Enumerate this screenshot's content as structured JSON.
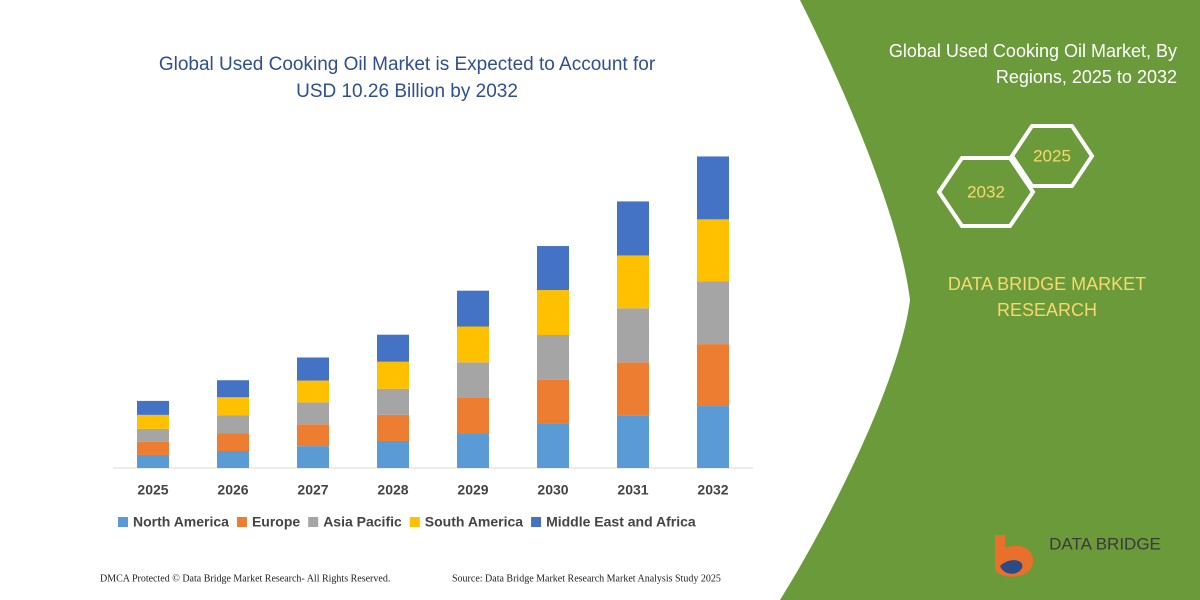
{
  "chart_data": {
    "type": "stacked-bar",
    "title": [
      "Global Used Cooking Oil Market is Expected to Account for",
      "USD 10.26 Billion by 2032"
    ],
    "categories": [
      "2025",
      "2026",
      "2027",
      "2028",
      "2029",
      "2030",
      "2031",
      "2032"
    ],
    "series": [
      {
        "name": "North America",
        "color": "#5b9bd5",
        "values": [
          0.43,
          0.56,
          0.72,
          0.89,
          1.15,
          1.45,
          1.74,
          2.04
        ]
      },
      {
        "name": "Europe",
        "color": "#ed7d31",
        "values": [
          0.43,
          0.59,
          0.72,
          0.86,
          1.18,
          1.45,
          1.74,
          2.04
        ]
      },
      {
        "name": "Asia Pacific",
        "color": "#a5a5a5",
        "values": [
          0.43,
          0.59,
          0.72,
          0.86,
          1.15,
          1.48,
          1.78,
          2.07
        ]
      },
      {
        "name": "South America",
        "color": "#ffc000",
        "values": [
          0.46,
          0.59,
          0.72,
          0.89,
          1.18,
          1.48,
          1.74,
          2.04
        ]
      },
      {
        "name": "Middle East and Africa",
        "color": "#4472c4",
        "values": [
          0.46,
          0.56,
          0.76,
          0.89,
          1.18,
          1.45,
          1.78,
          2.07
        ]
      }
    ],
    "ylim": [
      0,
      11
    ],
    "legend": "bottom"
  },
  "panel": {
    "title": [
      "Global Used Cooking Oil Market, By",
      "Regions, 2025 to 2032"
    ],
    "hexagons": [
      "2025",
      "2032"
    ],
    "brand": [
      "DATA BRIDGE MARKET",
      "RESEARCH"
    ],
    "logo": "DATA BRIDGE"
  },
  "footer": {
    "left": "DMCA Protected © Data Bridge Market Research-  All Rights Reserved.",
    "right": "Source: Data Bridge Market Research  Market Analysis Study 2025"
  }
}
